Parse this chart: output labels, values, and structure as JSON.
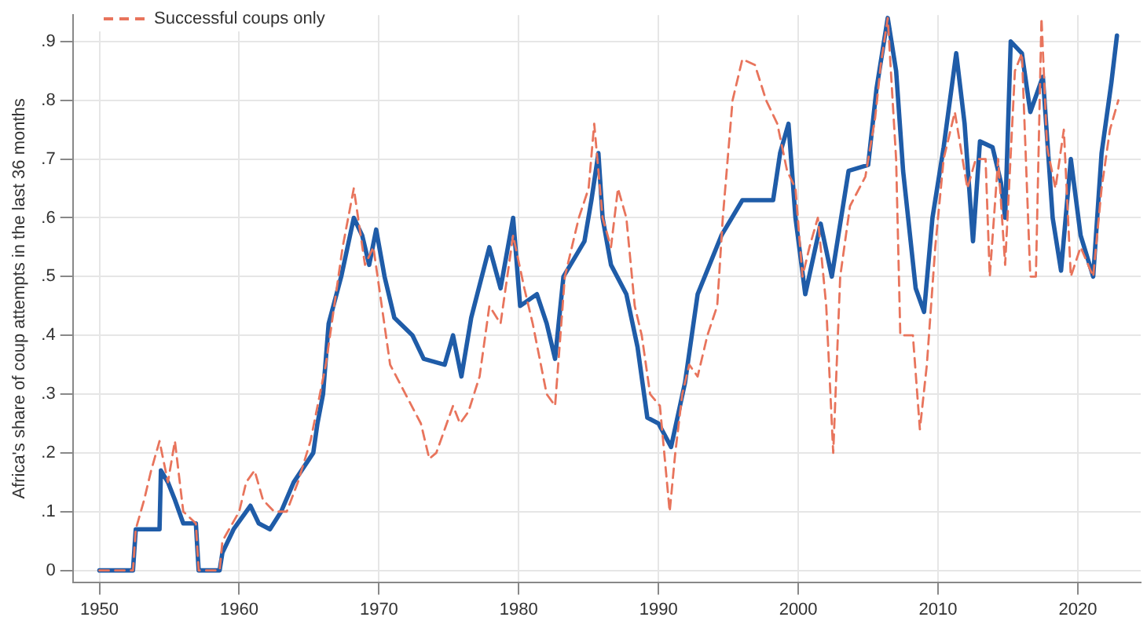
{
  "chart_data": {
    "type": "line",
    "ylabel": "Africa's share of coup attempts in the last 36 months",
    "xlim": [
      1948.1,
      2024.5
    ],
    "ylim": [
      -0.02,
      0.945
    ],
    "xticks": [
      1950,
      1960,
      1970,
      1980,
      1990,
      2000,
      2010,
      2020
    ],
    "yticks": [
      {
        "value": 0,
        "label": "0"
      },
      {
        "value": 0.1,
        "label": ".1"
      },
      {
        "value": 0.2,
        "label": ".2"
      },
      {
        "value": 0.3,
        "label": ".3"
      },
      {
        "value": 0.4,
        "label": ".4"
      },
      {
        "value": 0.5,
        "label": ".5"
      },
      {
        "value": 0.6,
        "label": ".6"
      },
      {
        "value": 0.7,
        "label": ".7"
      },
      {
        "value": 0.8,
        "label": ".8"
      },
      {
        "value": 0.9,
        "label": ".9"
      }
    ],
    "grid": true,
    "legend": "top left",
    "marker": "none",
    "series": [
      {
        "color": "#1f5ca8",
        "line_style": "solid",
        "x": [
          1950.0,
          1952.4,
          1952.6,
          1954.3,
          1954.4,
          1954.9,
          1955.4,
          1956.0,
          1956.9,
          1957.1,
          1958.6,
          1958.8,
          1959.6,
          1960.8,
          1961.4,
          1962.2,
          1963.0,
          1963.9,
          1965.3,
          1965.6,
          1966.0,
          1966.4,
          1967.3,
          1968.2,
          1968.8,
          1969.3,
          1969.8,
          1970.4,
          1971.1,
          1972.4,
          1973.2,
          1974.7,
          1975.3,
          1975.9,
          1976.6,
          1977.9,
          1978.7,
          1979.6,
          1980.1,
          1981.3,
          1982.0,
          1982.6,
          1983.2,
          1984.7,
          1985.2,
          1985.7,
          1986.0,
          1986.6,
          1987.7,
          1988.5,
          1989.2,
          1990.0,
          1990.9,
          1991.9,
          1992.8,
          1994.5,
          1996.0,
          1998.2,
          1998.7,
          1999.3,
          1999.8,
          2000.5,
          2001.6,
          2002.4,
          2003.6,
          2005.0,
          2005.6,
          2006.4,
          2007.0,
          2007.5,
          2008.4,
          2009.0,
          2009.6,
          2010.4,
          2011.3,
          2011.9,
          2012.5,
          2013.0,
          2013.9,
          2014.5,
          2014.8,
          2015.2,
          2016.0,
          2016.6,
          2017.5,
          2018.2,
          2018.8,
          2019.5,
          2020.2,
          2021.1,
          2021.7,
          2022.4,
          2022.8
        ],
        "values": [
          0,
          0,
          0.07,
          0.07,
          0.17,
          0.15,
          0.12,
          0.08,
          0.08,
          0,
          0,
          0.03,
          0.07,
          0.11,
          0.08,
          0.07,
          0.1,
          0.15,
          0.2,
          0.25,
          0.3,
          0.42,
          0.5,
          0.6,
          0.57,
          0.52,
          0.58,
          0.5,
          0.43,
          0.4,
          0.36,
          0.35,
          0.4,
          0.33,
          0.43,
          0.55,
          0.48,
          0.6,
          0.45,
          0.47,
          0.42,
          0.36,
          0.5,
          0.56,
          0.63,
          0.71,
          0.6,
          0.52,
          0.47,
          0.38,
          0.26,
          0.25,
          0.21,
          0.32,
          0.47,
          0.57,
          0.63,
          0.63,
          0.71,
          0.76,
          0.6,
          0.47,
          0.59,
          0.5,
          0.68,
          0.69,
          0.82,
          0.94,
          0.85,
          0.68,
          0.48,
          0.44,
          0.6,
          0.72,
          0.88,
          0.76,
          0.56,
          0.73,
          0.72,
          0.66,
          0.6,
          0.9,
          0.88,
          0.78,
          0.84,
          0.6,
          0.51,
          0.7,
          0.57,
          0.5,
          0.71,
          0.83,
          0.91
        ]
      },
      {
        "name": "Successful coups only",
        "color": "#e8745c",
        "line_style": "dashed",
        "x": [
          1950.0,
          1952.4,
          1952.6,
          1953.2,
          1953.7,
          1954.3,
          1954.9,
          1955.4,
          1956.0,
          1956.9,
          1957.1,
          1958.6,
          1958.8,
          1960.0,
          1960.5,
          1961.1,
          1961.7,
          1962.5,
          1963.4,
          1964.2,
          1965.1,
          1966.2,
          1966.8,
          1967.4,
          1968.2,
          1969.0,
          1969.6,
          1970.2,
          1970.8,
          1971.9,
          1973.0,
          1973.6,
          1974.1,
          1974.7,
          1975.3,
          1975.8,
          1976.4,
          1977.2,
          1977.9,
          1978.7,
          1979.6,
          1980.4,
          1981.0,
          1982.0,
          1982.6,
          1983.3,
          1984.3,
          1985.0,
          1985.4,
          1986.0,
          1986.6,
          1987.1,
          1987.7,
          1988.3,
          1988.8,
          1989.4,
          1990.1,
          1990.8,
          1991.2,
          1991.7,
          1992.2,
          1992.8,
          1993.5,
          1994.2,
          1994.6,
          1995.3,
          1996.0,
          1996.9,
          1997.7,
          1998.5,
          1999.2,
          1999.8,
          2000.3,
          2000.8,
          2001.4,
          2002.0,
          2002.5,
          2003.0,
          2003.7,
          2004.8,
          2005.5,
          2005.9,
          2006.4,
          2007.0,
          2007.3,
          2008.2,
          2008.7,
          2009.2,
          2009.8,
          2010.4,
          2011.2,
          2012.1,
          2012.7,
          2013.4,
          2013.7,
          2014.3,
          2014.8,
          2015.5,
          2016.0,
          2016.6,
          2017.0,
          2017.4,
          2017.8,
          2018.4,
          2019.0,
          2019.5,
          2020.2,
          2021.1,
          2021.7,
          2022.3,
          2022.9
        ],
        "values": [
          0,
          0,
          0.07,
          0.12,
          0.17,
          0.22,
          0.15,
          0.22,
          0.1,
          0.08,
          0,
          0,
          0.05,
          0.1,
          0.15,
          0.17,
          0.12,
          0.1,
          0.1,
          0.15,
          0.22,
          0.35,
          0.45,
          0.55,
          0.65,
          0.52,
          0.55,
          0.45,
          0.35,
          0.3,
          0.25,
          0.19,
          0.2,
          0.24,
          0.28,
          0.25,
          0.27,
          0.33,
          0.45,
          0.42,
          0.57,
          0.48,
          0.42,
          0.3,
          0.28,
          0.5,
          0.6,
          0.65,
          0.76,
          0.6,
          0.55,
          0.65,
          0.6,
          0.45,
          0.4,
          0.3,
          0.28,
          0.1,
          0.2,
          0.3,
          0.35,
          0.33,
          0.4,
          0.45,
          0.6,
          0.8,
          0.87,
          0.86,
          0.8,
          0.76,
          0.68,
          0.65,
          0.5,
          0.55,
          0.6,
          0.45,
          0.2,
          0.5,
          0.62,
          0.67,
          0.77,
          0.86,
          0.94,
          0.7,
          0.4,
          0.4,
          0.24,
          0.35,
          0.55,
          0.7,
          0.78,
          0.65,
          0.7,
          0.7,
          0.5,
          0.7,
          0.52,
          0.85,
          0.88,
          0.5,
          0.5,
          0.94,
          0.72,
          0.65,
          0.75,
          0.5,
          0.55,
          0.5,
          0.65,
          0.75,
          0.8
        ]
      }
    ]
  }
}
